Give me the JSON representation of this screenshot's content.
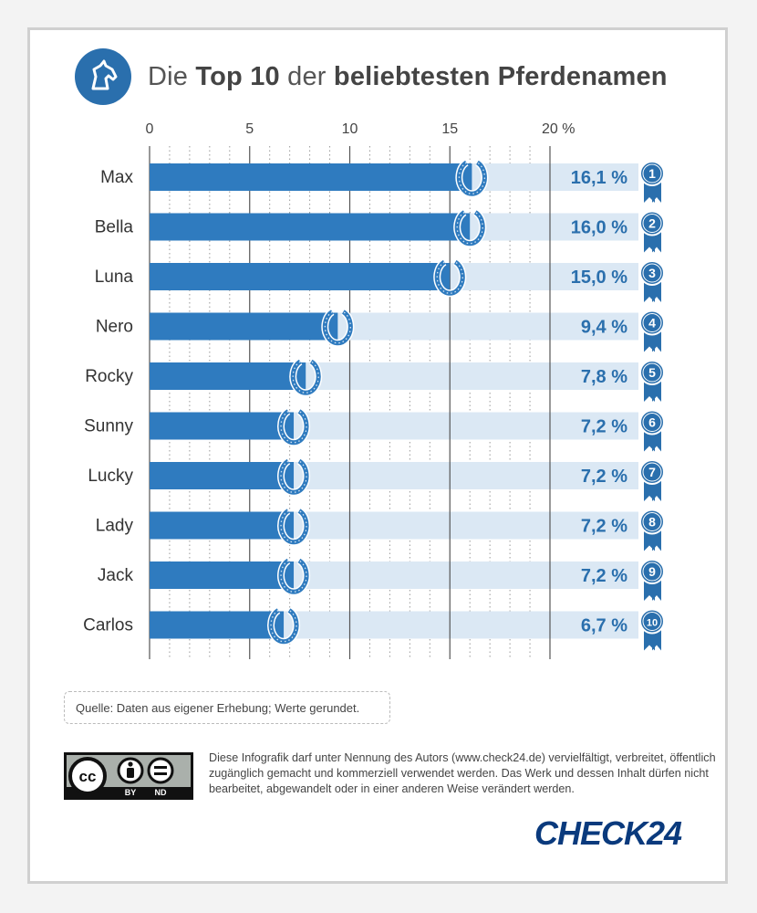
{
  "title": {
    "part1": "Die ",
    "bold1": "Top 10",
    "part2": " der ",
    "bold2": "beliebtesten Pferdenamen"
  },
  "logo_icon": "horse-head-icon",
  "chart_data": {
    "type": "bar",
    "orientation": "horizontal",
    "categories": [
      "Max",
      "Bella",
      "Luna",
      "Nero",
      "Rocky",
      "Sunny",
      "Lucky",
      "Lady",
      "Jack",
      "Carlos"
    ],
    "values": [
      16.1,
      16.0,
      15.0,
      9.4,
      7.8,
      7.2,
      7.2,
      7.2,
      7.2,
      6.7
    ],
    "value_labels": [
      "16,1 %",
      "16,0 %",
      "15,0 %",
      "9,4 %",
      "7,8 %",
      "7,2 %",
      "7,2 %",
      "7,2 %",
      "7,2 %",
      "6,7 %"
    ],
    "ranks": [
      "1",
      "2",
      "3",
      "4",
      "5",
      "6",
      "7",
      "8",
      "9",
      "10"
    ],
    "xticks": [
      0,
      5,
      10,
      15,
      20
    ],
    "xtick_labels": [
      "0",
      "5",
      "10",
      "15",
      "20 %"
    ],
    "xlim": [
      0,
      20
    ],
    "grid": true,
    "colors": {
      "bar": "#2f7bbf",
      "track": "#dbe8f4",
      "label": "#2a6fad",
      "badge": "#2a6fad",
      "grid": "#555555"
    }
  },
  "source": "Quelle: Daten aus eigener Erhebung; Werte gerundet.",
  "cc_badge": {
    "icons": [
      "cc-icon",
      "by-icon",
      "nd-icon"
    ],
    "by": "BY",
    "nd": "ND",
    "cc": "cc"
  },
  "license_text": "Diese Infografik darf unter Nennung des Autors (www.check24.de) vervielfältigt, verbreitet, öffentlich zugänglich gemacht und kommerziell verwendet werden. Das Werk und dessen Inhalt dürfen nicht bearbeitet, abgewandelt oder in einer anderen Weise verändert werden.",
  "brand": "CHECK24"
}
